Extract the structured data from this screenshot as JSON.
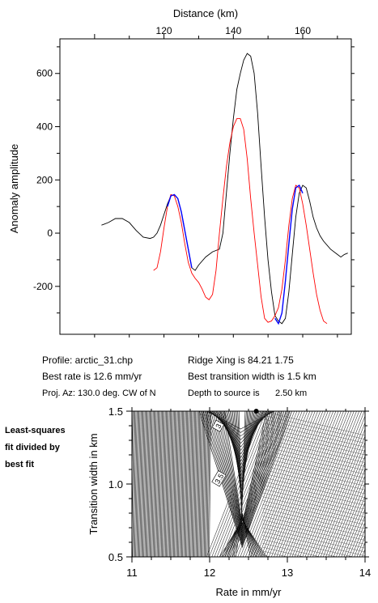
{
  "profile_chart": {
    "type": "line",
    "xlabel": "Distance (km)",
    "ylabel": "Anomaly amplitude",
    "xlim": [
      90,
      174
    ],
    "ylim": [
      -380,
      730
    ],
    "x_ticks": [
      120,
      140,
      160
    ],
    "y_ticks": [
      600,
      400,
      200,
      0,
      -200
    ],
    "grid": false,
    "series_colors": {
      "observed": "#000000",
      "model": "#ff0000",
      "fit_window": "#0000ff"
    }
  },
  "info": {
    "profile": "Profile: arctic_31.chp",
    "best_rate": "Best rate is 12.6 mm/yr",
    "proj_az": "Proj. Az: 130.0 deg. CW of N",
    "ridge_xing": "Ridge Xing is 84.21 1.75",
    "best_width": "Best transition width is 1.5 km",
    "depth_label": "Depth to source is",
    "depth_value": "2.50 km"
  },
  "side_label": [
    "Least-squares",
    "fit divided by",
    "best fit"
  ],
  "contour_chart": {
    "type": "heatmap",
    "xlabel": "Rate in mm/yr",
    "ylabel": "Transition width in km",
    "xlim": [
      11,
      14
    ],
    "ylim": [
      0.5,
      1.5
    ],
    "x_ticks": [
      "11",
      "12",
      "13",
      "14"
    ],
    "y_ticks": [
      "1.5",
      "1.0",
      "0.5"
    ],
    "contour_labels": [
      "3",
      "3.5"
    ],
    "best_fit_point": {
      "rate": 12.6,
      "width": 1.5
    }
  },
  "chart_data": [
    {
      "type": "line",
      "xlabel": "Distance (km)",
      "ylabel": "Anomaly amplitude",
      "xlim": [
        90,
        174
      ],
      "ylim": [
        -380,
        730
      ],
      "series": [
        {
          "name": "",
          "color": "#000000",
          "x": [
            102,
            104,
            106,
            108,
            110,
            112,
            114,
            116,
            117,
            118,
            119,
            120,
            121,
            122,
            123,
            124,
            125,
            126,
            127,
            128,
            129,
            130,
            132,
            134,
            136,
            137,
            138,
            139,
            140,
            141,
            142,
            143,
            144,
            145,
            146,
            147,
            148,
            149,
            150,
            151,
            152,
            153,
            154,
            155,
            156,
            157,
            158,
            159,
            160,
            161,
            162,
            163,
            164,
            165,
            166,
            168,
            170,
            171,
            172,
            173
          ],
          "y": [
            30,
            40,
            55,
            55,
            40,
            10,
            -15,
            -20,
            -15,
            0,
            30,
            70,
            110,
            140,
            145,
            130,
            80,
            10,
            -60,
            -130,
            -140,
            -120,
            -90,
            -70,
            -60,
            0,
            150,
            300,
            430,
            540,
            600,
            650,
            675,
            665,
            600,
            450,
            250,
            60,
            -100,
            -220,
            -310,
            -330,
            -340,
            -320,
            -220,
            -80,
            60,
            150,
            180,
            170,
            120,
            60,
            20,
            -10,
            -30,
            -60,
            -80,
            -90,
            -80,
            -75
          ]
        },
        {
          "name": "",
          "color": "#ff0000",
          "x": [
            117,
            118,
            119,
            120,
            121,
            122,
            123,
            124,
            125,
            126,
            127,
            128,
            129,
            130,
            131,
            132,
            133,
            134,
            135,
            136,
            137,
            138,
            139,
            140,
            141,
            142,
            143,
            144,
            145,
            146,
            147,
            148,
            149,
            150,
            151,
            152,
            153,
            154,
            155,
            156,
            157,
            158,
            159,
            160,
            161,
            162,
            163,
            164,
            165,
            166,
            167
          ],
          "y": [
            -140,
            -130,
            -70,
            20,
            100,
            145,
            140,
            100,
            40,
            -40,
            -110,
            -150,
            -170,
            -185,
            -210,
            -240,
            -250,
            -230,
            -140,
            0,
            130,
            250,
            340,
            400,
            430,
            430,
            390,
            280,
            130,
            0,
            -120,
            -240,
            -320,
            -335,
            -330,
            -310,
            -280,
            -210,
            -100,
            30,
            130,
            180,
            170,
            110,
            30,
            -60,
            -150,
            -230,
            -290,
            -330,
            -340
          ]
        },
        {
          "name": "",
          "color": "#0000ff",
          "x": [
            121,
            122,
            123,
            124,
            125,
            126,
            127,
            128,
            152,
            153,
            154,
            155,
            156,
            157,
            158,
            159,
            160
          ],
          "y": [
            100,
            140,
            145,
            130,
            80,
            10,
            -60,
            -130,
            -320,
            -340,
            -300,
            -180,
            -40,
            90,
            170,
            180,
            150
          ]
        }
      ]
    },
    {
      "type": "heatmap",
      "xlabel": "Rate in mm/yr",
      "ylabel": "Transition width in km",
      "xlim": [
        11,
        14
      ],
      "ylim": [
        0.5,
        1.5
      ],
      "contour_labels": [
        "3",
        "3.5"
      ],
      "best_fit": {
        "x": 12.6,
        "y": 1.5
      }
    }
  ]
}
